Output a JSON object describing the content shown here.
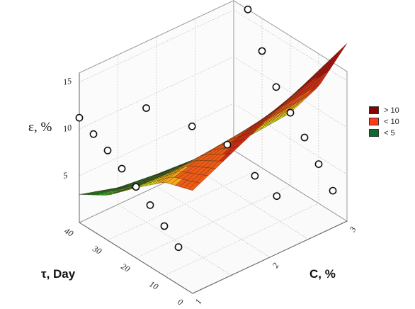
{
  "chart_data": {
    "type": "surface",
    "title": "",
    "zlabel": "ε, %",
    "xlabel": "C, %",
    "ylabel": "τ,  Day",
    "x_ticks": [
      "1",
      "2",
      "3"
    ],
    "y_ticks": [
      "0",
      "10",
      "20",
      "30",
      "40"
    ],
    "z_ticks": [
      "5",
      "10",
      "15"
    ],
    "xlim": [
      1,
      3
    ],
    "ylim": [
      0,
      40
    ],
    "zlim": [
      0,
      16
    ],
    "surface": {
      "x": [
        1.0,
        1.5,
        2.0,
        2.5,
        3.0
      ],
      "y": [
        0,
        10,
        20,
        30,
        40
      ],
      "z": [
        [
          11.0,
          13.0,
          15.0,
          17.0,
          19.0
        ],
        [
          10.0,
          11.0,
          11.5,
          12.0,
          12.5
        ],
        [
          7.5,
          7.5,
          7.3,
          7.4,
          7.8
        ],
        [
          4.8,
          4.2,
          3.8,
          3.9,
          4.2
        ],
        [
          3.0,
          1.8,
          1.3,
          1.0,
          1.2
        ]
      ]
    },
    "points": [
      {
        "x": 1.0,
        "y": 40,
        "z": 11.2
      },
      {
        "x": 1.0,
        "y": 35,
        "z": 10.4
      },
      {
        "x": 1.0,
        "y": 30,
        "z": 9.6
      },
      {
        "x": 1.0,
        "y": 25,
        "z": 8.6
      },
      {
        "x": 1.0,
        "y": 20,
        "z": 7.6
      },
      {
        "x": 1.0,
        "y": 15,
        "z": 6.6
      },
      {
        "x": 1.0,
        "y": 10,
        "z": 5.3
      },
      {
        "x": 1.0,
        "y": 5,
        "z": 4.0
      },
      {
        "x": 3.0,
        "y": 40,
        "z": 19.0
      },
      {
        "x": 3.0,
        "y": 35,
        "z": 16.0
      },
      {
        "x": 3.0,
        "y": 30,
        "z": 12.5
      },
      {
        "x": 3.0,
        "y": 25,
        "z": 9.6
      },
      {
        "x": 3.0,
        "y": 20,
        "z": 7.8
      },
      {
        "x": 3.0,
        "y": 15,
        "z": 6.1
      },
      {
        "x": 3.0,
        "y": 10,
        "z": 4.2
      },
      {
        "x": 3.0,
        "y": 5,
        "z": 2.3
      },
      {
        "x": 1.5,
        "y": 30,
        "z": 12.2
      },
      {
        "x": 1.8,
        "y": 22,
        "z": 10.6
      },
      {
        "x": 2.0,
        "y": 15,
        "z": 9.2
      },
      {
        "x": 2.1,
        "y": 8,
        "z": 6.8
      },
      {
        "x": 2.2,
        "y": 3,
        "z": 5.2
      }
    ],
    "legend": [
      {
        "label": "> 10",
        "color": "#8b0000"
      },
      {
        "label": "< 10",
        "color": "#ff3b1a"
      },
      {
        "label": "< 5",
        "color": "#0a6b2a"
      }
    ],
    "legend_position": "right",
    "grid": true
  }
}
